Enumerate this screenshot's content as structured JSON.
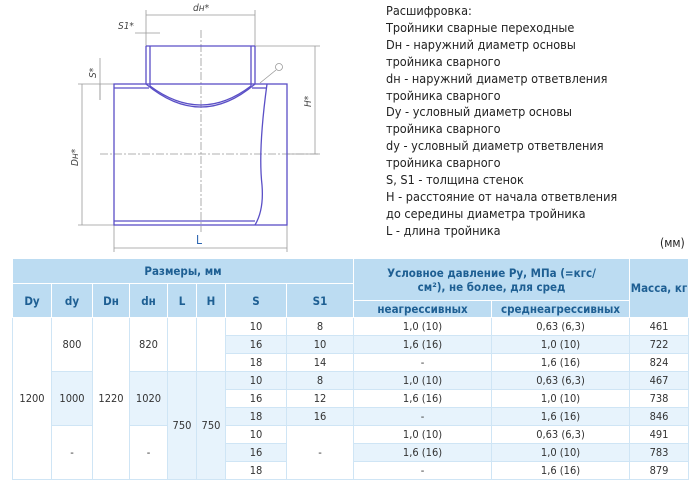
{
  "drawing": {
    "labels": {
      "dn": "dн*",
      "s1": "S1*",
      "s": "S*",
      "h": "H*",
      "Dn": "Dн*",
      "L": "L"
    },
    "line_color": "#5a4fc6"
  },
  "legend": [
    "Расшифровка:",
    "Тройники сварные переходные",
    "Dн - наружний диаметр основы",
    "тройника сварного",
    "dн - наружний диаметр ответвления",
    "тройника сварного",
    "Dy - условный диаметр основы",
    "тройника сварного",
    "dy - условный диаметр ответвления",
    "тройника сварного",
    "S, S1 - толщина стенок",
    "H - расстояние от начала ответвления",
    "до середины диаметра тройника",
    "L - длина тройника"
  ],
  "unit": "(мм)",
  "table": {
    "header": {
      "sizes": "Размеры, мм",
      "pressure": "Условное давление Pу, МПа (=кгс/см²), не более, для сред",
      "mass": "Масса, кг",
      "cols": [
        "Dу",
        "dу",
        "Dн",
        "dн",
        "L",
        "H",
        "S",
        "S1"
      ],
      "non_aggr": "неагрессивных",
      "mid_aggr": "среднеагрессивных"
    },
    "Dy": "1200",
    "Dn": "1220",
    "L": "750",
    "H": "750",
    "groups": [
      {
        "dy": "800",
        "dn": "820",
        "rows": [
          {
            "S": "10",
            "S1": "8",
            "p1": "1,0 (10)",
            "p2": "0,63 (6,3)",
            "m": "461"
          },
          {
            "S": "16",
            "S1": "10",
            "p1": "1,6 (16)",
            "p2": "1,0 (10)",
            "m": "722"
          },
          {
            "S": "18",
            "S1": "14",
            "p1": "-",
            "p2": "1,6 (16)",
            "m": "824"
          }
        ]
      },
      {
        "dy": "1000",
        "dn": "1020",
        "rows": [
          {
            "S": "10",
            "S1": "8",
            "p1": "1,0 (10)",
            "p2": "0,63 (6,3)",
            "m": "467"
          },
          {
            "S": "16",
            "S1": "12",
            "p1": "1,6 (16)",
            "p2": "1,0 (10)",
            "m": "738"
          },
          {
            "S": "18",
            "S1": "16",
            "p1": "-",
            "p2": "1,6 (16)",
            "m": "846"
          }
        ]
      },
      {
        "dy": "-",
        "dn": "-",
        "S1": "-",
        "rows": [
          {
            "S": "10",
            "p1": "1,0 (10)",
            "p2": "0,63 (6,3)",
            "m": "491"
          },
          {
            "S": "16",
            "p1": "1,6 (16)",
            "p2": "1,0 (10)",
            "m": "783"
          },
          {
            "S": "18",
            "p1": "-",
            "p2": "1,6 (16)",
            "m": "879"
          }
        ]
      }
    ]
  }
}
